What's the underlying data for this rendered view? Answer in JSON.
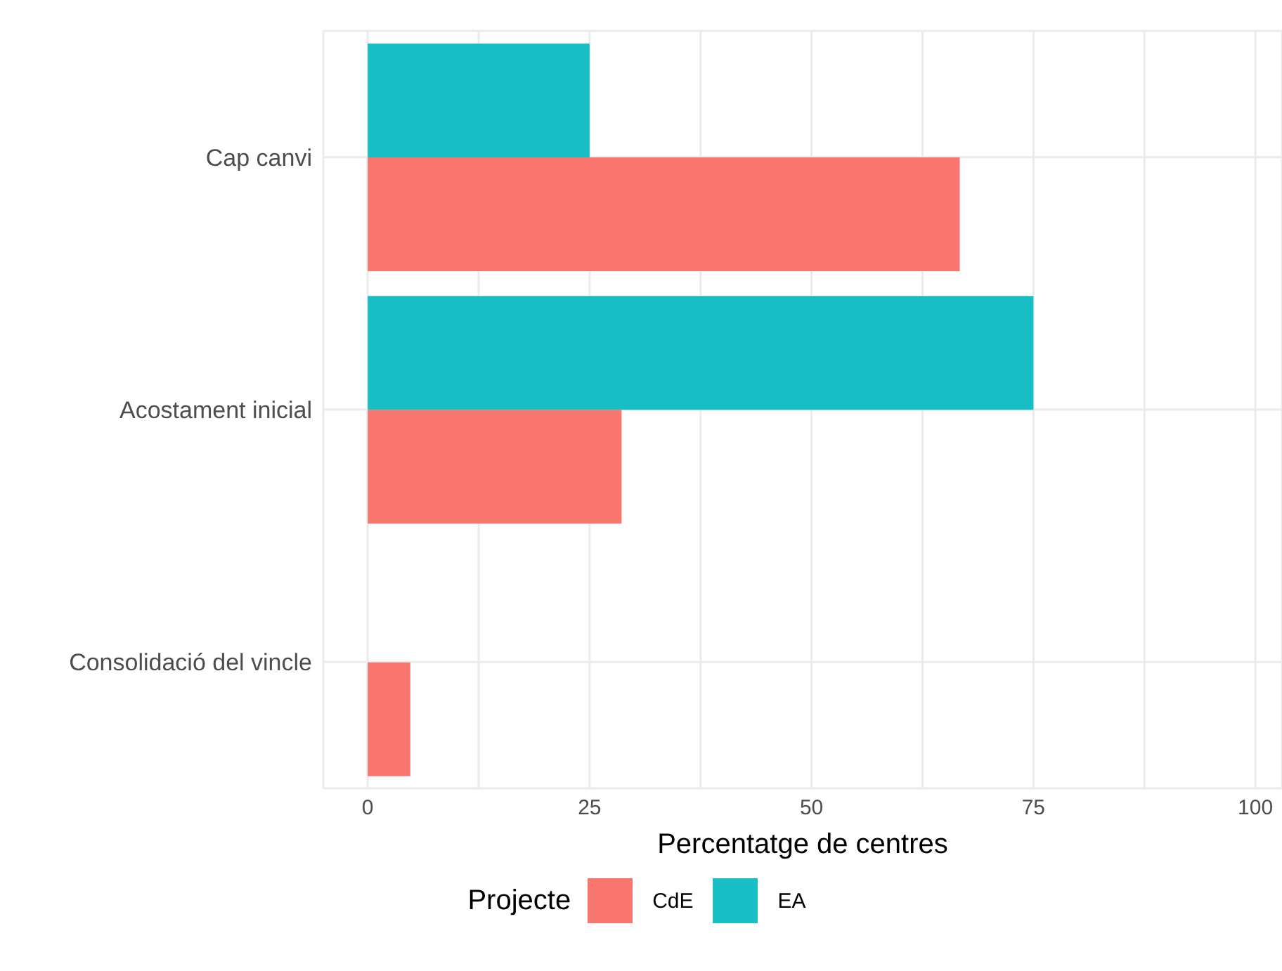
{
  "chart_data": {
    "type": "bar",
    "orientation": "horizontal",
    "xlabel": "Percentatge de centres",
    "legend_title": "Projecte",
    "legend": "bottom",
    "grid": true,
    "categories": [
      "Cap canvi",
      "Acostament inicial",
      "Consolidació del vincle"
    ],
    "series": [
      {
        "name": "CdE",
        "color": "#f8766d",
        "values": [
          66.7,
          28.6,
          4.8
        ]
      },
      {
        "name": "EA",
        "color": "#17bfc4",
        "values": [
          25,
          75,
          null
        ]
      }
    ],
    "xlim": [
      -5,
      103
    ],
    "xticks": [
      0,
      {
        "value": 12.5,
        "label": null
      },
      25,
      {
        "value": 37.5,
        "label": null
      },
      50,
      {
        "value": 62.5,
        "label": null
      },
      75,
      {
        "value": 87.5,
        "label": null
      },
      100
    ]
  }
}
